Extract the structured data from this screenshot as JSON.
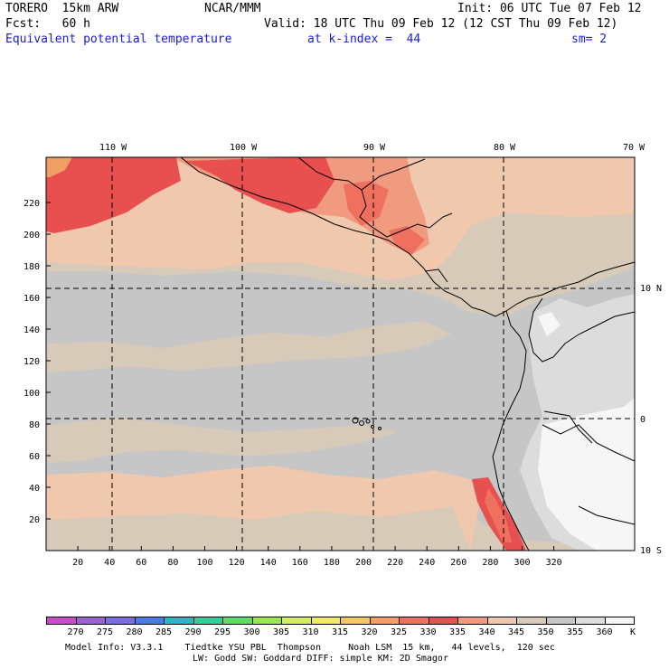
{
  "header": {
    "model": "TORERO  15km ARW",
    "center": "NCAR/MMM",
    "init": "Init: 06 UTC Tue 07 Feb 12",
    "fcst": "Fcst:   60 h",
    "valid": "Valid: 18 UTC Thu 09 Feb 12 (12 CST Thu 09 Feb 12)",
    "field": "Equivalent potential temperature",
    "level": "at k-index =  44",
    "smooth": "sm= 2"
  },
  "map": {
    "lon_labels": [
      "110 W",
      "100 W",
      "90 W",
      "80 W",
      "70 W"
    ],
    "lat_labels": [
      "10 N",
      "0",
      "10 S"
    ],
    "y_grid_labels": [
      "220",
      "200",
      "180",
      "160",
      "140",
      "120",
      "100",
      "80",
      "60",
      "40",
      "20"
    ],
    "x_grid_labels": [
      "20",
      "40",
      "60",
      "80",
      "100",
      "120",
      "140",
      "160",
      "180",
      "200",
      "220",
      "240",
      "260",
      "280",
      "300",
      "320"
    ]
  },
  "colorbar": {
    "labels": [
      "270",
      "275",
      "280",
      "285",
      "290",
      "295",
      "300",
      "305",
      "310",
      "315",
      "320",
      "325",
      "330",
      "335",
      "340",
      "345",
      "350",
      "355",
      "360"
    ],
    "unit": "K",
    "colors": [
      "#c84ec8",
      "#9b63d2",
      "#7a6ee0",
      "#4a7ae6",
      "#28b8c0",
      "#2ad29a",
      "#5edc64",
      "#9ce650",
      "#d2ee58",
      "#f2ea5a",
      "#f2c864",
      "#f0a064",
      "#f07060",
      "#e85050",
      "#f09a80",
      "#f0c8ae",
      "#d8cab8",
      "#c6c6c6",
      "#dcdcdc",
      "#f6f6f6"
    ]
  },
  "footer": {
    "line1": "Model Info: V3.3.1    Tiedtke YSU PBL  Thompson     Noah LSM  15 km,   44 levels,  120 sec",
    "line2": "LW: Godd SW: Goddard DIFF: simple KM: 2D Smagor"
  }
}
